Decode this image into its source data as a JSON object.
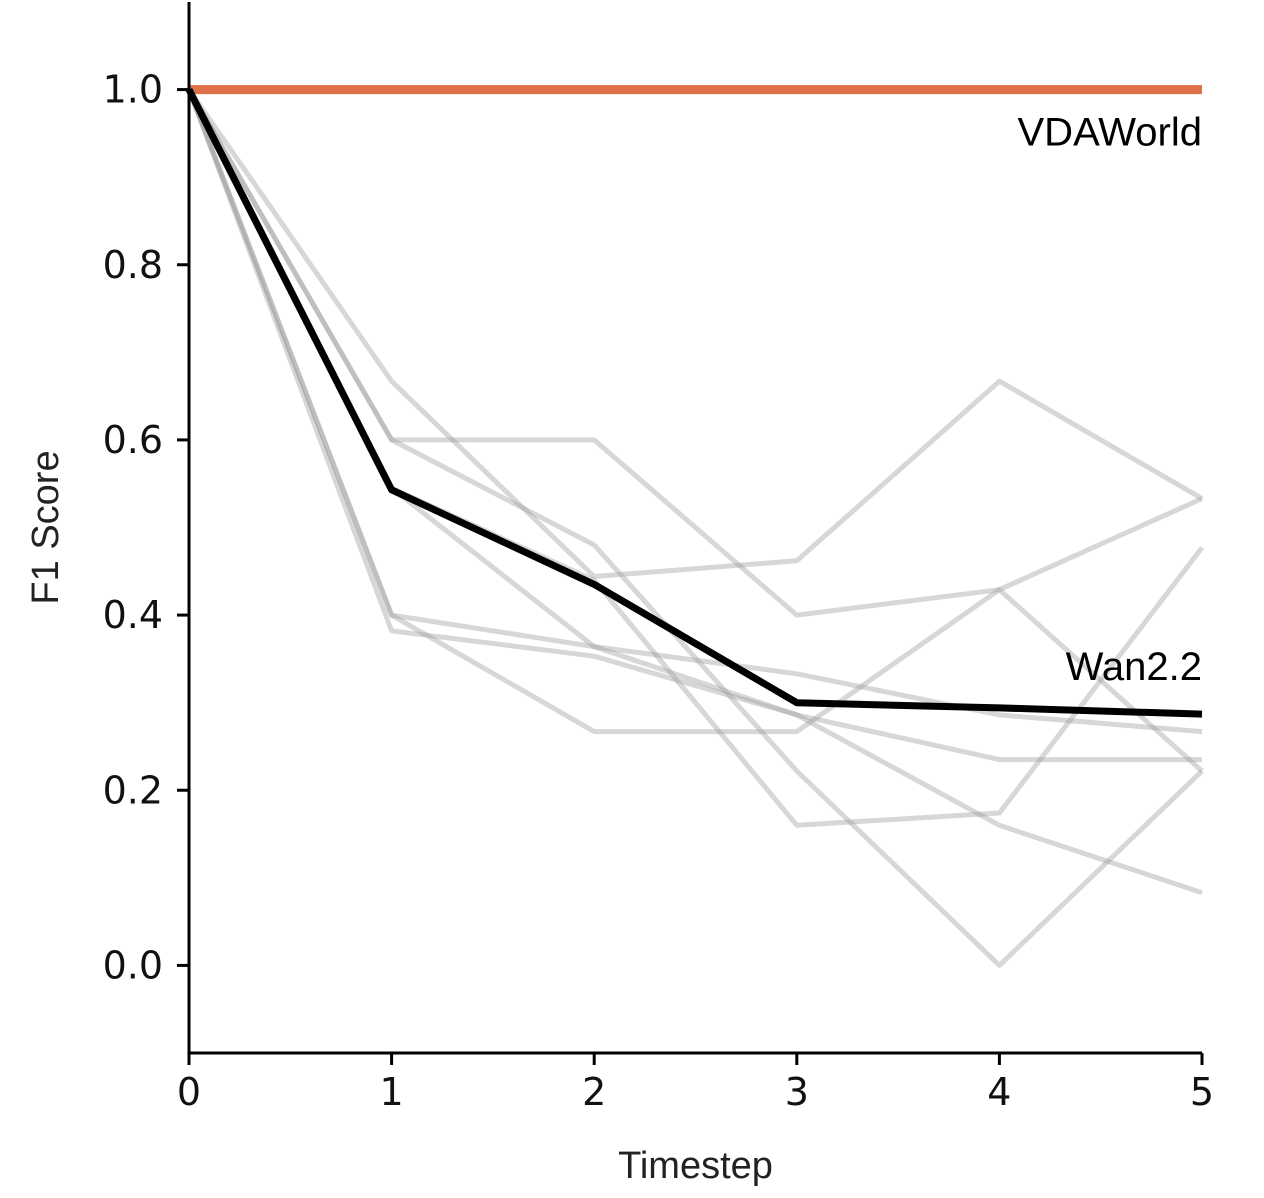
{
  "chart_data": {
    "type": "line",
    "title": "",
    "xlabel": "Timestep",
    "ylabel": "F1 Score",
    "xlim": [
      0,
      5
    ],
    "ylim": [
      -0.1,
      1.1
    ],
    "xticks": [
      "0",
      "1",
      "2",
      "3",
      "4",
      "5"
    ],
    "yticks": [
      "0.0",
      "0.2",
      "0.4",
      "0.6",
      "0.8",
      "1.0"
    ],
    "x": [
      0,
      1,
      2,
      3,
      4,
      5
    ],
    "grid": false,
    "reference_series": {
      "name": "VDAWorld",
      "values": [
        1.0,
        1.0,
        1.0,
        1.0,
        1.0,
        1.0
      ],
      "color": "#e07048"
    },
    "highlight_series": {
      "name": "Wan2.2",
      "values": [
        1.0,
        0.543,
        0.435,
        0.3,
        0.294,
        0.287
      ],
      "color": "#000000"
    },
    "background_series_color": "#9a9a9a",
    "background_series": [
      {
        "values": [
          1.0,
          0.6,
          0.6,
          0.4,
          0.429,
          0.533
        ]
      },
      {
        "values": [
          1.0,
          0.667,
          0.444,
          0.462,
          0.667,
          0.533
        ]
      },
      {
        "values": [
          1.0,
          0.4,
          0.364,
          0.333,
          0.286,
          0.267
        ]
      },
      {
        "values": [
          1.0,
          0.382,
          0.353,
          0.286,
          0.235,
          0.235
        ]
      },
      {
        "values": [
          1.0,
          0.4,
          0.267,
          0.267,
          0.429,
          0.222
        ]
      },
      {
        "values": [
          1.0,
          0.6,
          0.48,
          0.222,
          0.0,
          0.222
        ]
      },
      {
        "values": [
          1.0,
          0.545,
          0.44,
          0.16,
          0.174,
          0.477
        ]
      },
      {
        "values": [
          1.0,
          0.545,
          0.364,
          0.286,
          0.16,
          0.083
        ]
      }
    ]
  }
}
